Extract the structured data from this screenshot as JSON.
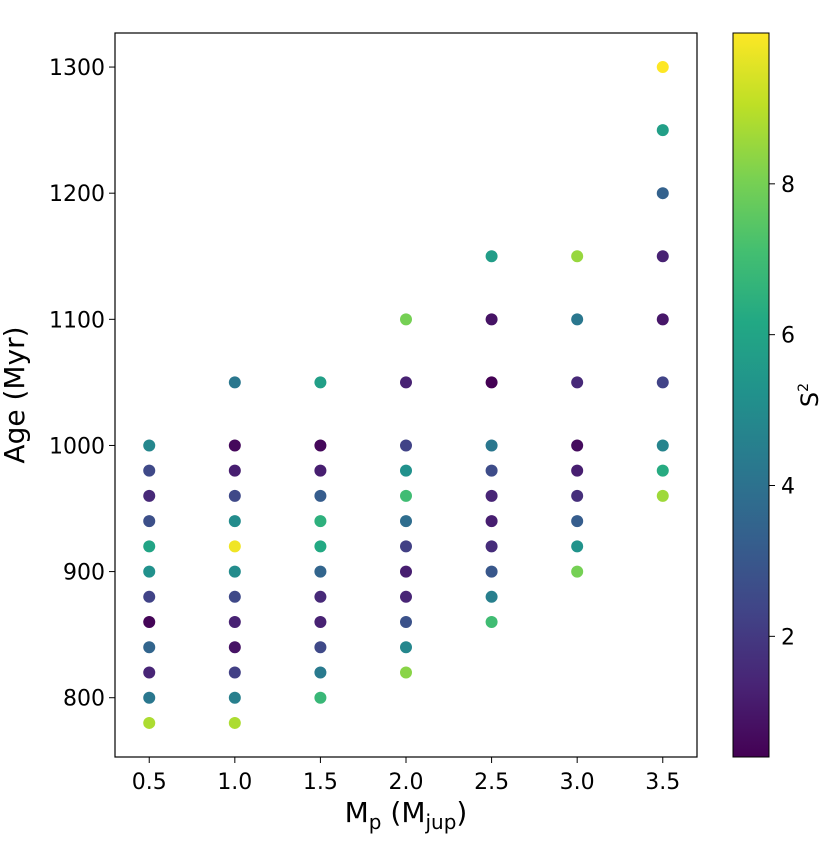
{
  "chart_data": {
    "type": "scatter",
    "xlabel": [
      "M",
      "p",
      " (M",
      "jup",
      ")"
    ],
    "ylabel": "Age (Myr)",
    "colorbar_label": [
      "S",
      "2"
    ],
    "colormap": "viridis",
    "clim": [
      0.4,
      10.0
    ],
    "cticks": [
      2,
      4,
      6,
      8
    ],
    "xlim": [
      0.3,
      3.7
    ],
    "ylim": [
      753,
      1327
    ],
    "xticks": [
      0.5,
      {
        "value": 1,
        "label": "1.0"
      },
      1.5,
      {
        "value": 2,
        "label": "2.0"
      },
      2.5,
      {
        "value": 3,
        "label": "3.0"
      },
      3.5
    ],
    "yticks": [
      800,
      900,
      1000,
      1100,
      1200,
      1300
    ],
    "x": [
      0.5,
      0.5,
      0.5,
      0.5,
      0.5,
      0.5,
      0.5,
      0.5,
      0.5,
      0.5,
      0.5,
      0.5,
      1,
      1,
      1,
      1,
      1,
      1,
      1,
      1,
      1,
      1,
      1,
      1,
      1,
      1.5,
      1.5,
      1.5,
      1.5,
      1.5,
      1.5,
      1.5,
      1.5,
      1.5,
      1.5,
      1.5,
      1.5,
      2,
      2,
      2,
      2,
      2,
      2,
      2,
      2,
      2,
      2,
      2,
      2,
      2.5,
      2.5,
      2.5,
      2.5,
      2.5,
      2.5,
      2.5,
      2.5,
      2.5,
      2.5,
      2.5,
      3,
      3,
      3,
      3,
      3,
      3,
      3,
      3,
      3,
      3.5,
      3.5,
      3.5,
      3.5,
      3.5,
      3.5,
      3.5,
      3.5,
      3.5
    ],
    "y": [
      1000,
      980,
      960,
      940,
      920,
      900,
      880,
      860,
      840,
      820,
      800,
      780,
      1050,
      1000,
      980,
      960,
      940,
      920,
      900,
      880,
      860,
      840,
      820,
      800,
      780,
      1050,
      1000,
      980,
      960,
      940,
      920,
      900,
      880,
      860,
      840,
      820,
      800,
      1100,
      1050,
      1000,
      980,
      960,
      940,
      920,
      900,
      880,
      860,
      840,
      820,
      1150,
      1100,
      1050,
      1000,
      980,
      960,
      940,
      920,
      900,
      880,
      860,
      1150,
      1100,
      1050,
      1000,
      980,
      960,
      940,
      920,
      900,
      1300,
      1250,
      1200,
      1150,
      1100,
      1050,
      1000,
      980,
      960
    ],
    "color_values": [
      4.8,
      2.5,
      1.5,
      2.7,
      6.0,
      5.2,
      2.3,
      0.5,
      3.5,
      1.4,
      4.2,
      8.8,
      4.2,
      0.6,
      1.2,
      2.5,
      5.0,
      9.8,
      5.0,
      2.5,
      1.3,
      0.9,
      2.2,
      4.5,
      8.8,
      5.8,
      0.6,
      1.2,
      3.2,
      6.5,
      6.2,
      3.5,
      1.5,
      1.3,
      2.5,
      4.3,
      6.8,
      8.0,
      1.3,
      2.3,
      5.2,
      7.0,
      3.8,
      2.2,
      1.2,
      1.4,
      2.8,
      4.8,
      8.3,
      5.7,
      0.9,
      0.4,
      4.2,
      2.6,
      1.4,
      1.2,
      1.6,
      3.0,
      4.5,
      7.0,
      8.5,
      4.2,
      1.5,
      0.7,
      1.2,
      1.7,
      3.2,
      5.3,
      8.0,
      10.0,
      5.8,
      3.4,
      1.3,
      1.0,
      2.3,
      4.7,
      6.3,
      8.6
    ]
  }
}
